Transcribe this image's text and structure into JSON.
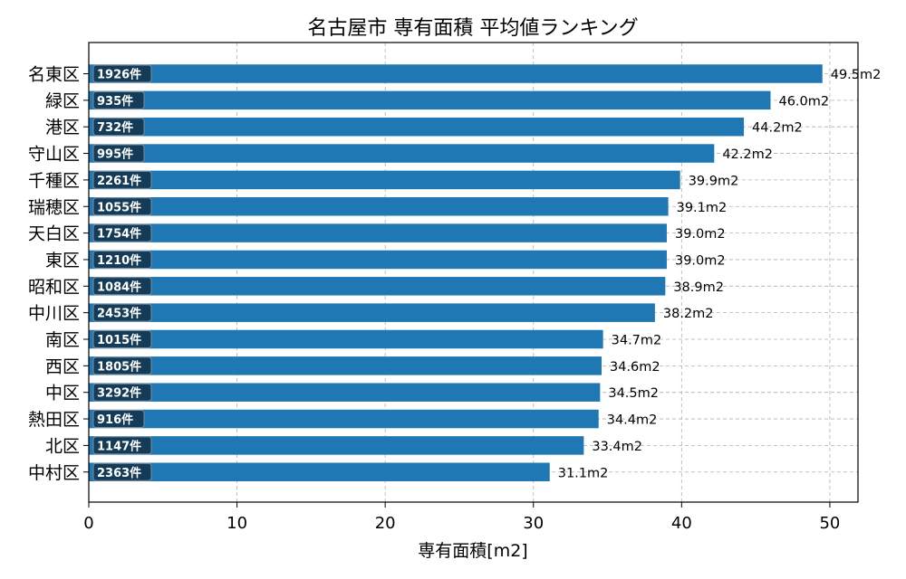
{
  "chart_data": {
    "type": "bar",
    "orientation": "horizontal",
    "title": "名古屋市 専有面積 平均値ランキング",
    "xlabel": "専有面積[m2]",
    "ylabel": "",
    "xlim": [
      0,
      51.9
    ],
    "xticks": [
      0,
      10,
      20,
      30,
      40,
      50
    ],
    "grid": true,
    "categories": [
      "名東区",
      "緑区",
      "港区",
      "守山区",
      "千種区",
      "瑞穂区",
      "天白区",
      "東区",
      "昭和区",
      "中川区",
      "南区",
      "西区",
      "中区",
      "熱田区",
      "北区",
      "中村区"
    ],
    "values": [
      49.5,
      46.0,
      44.2,
      42.2,
      39.9,
      39.1,
      39.0,
      39.0,
      38.9,
      38.2,
      34.7,
      34.6,
      34.5,
      34.4,
      33.4,
      31.1
    ],
    "value_labels": [
      "49.5m2",
      "46.0m2",
      "44.2m2",
      "42.2m2",
      "39.9m2",
      "39.1m2",
      "39.0m2",
      "39.0m2",
      "38.9m2",
      "38.2m2",
      "34.7m2",
      "34.6m2",
      "34.5m2",
      "34.4m2",
      "33.4m2",
      "31.1m2"
    ],
    "counts": [
      "1926件",
      "935件",
      "732件",
      "995件",
      "2261件",
      "1055件",
      "1754件",
      "1210件",
      "1084件",
      "2453件",
      "1015件",
      "1805件",
      "3292件",
      "916件",
      "1147件",
      "2363件"
    ],
    "colors": {
      "bar": "#1f77b4",
      "count_badge": "#143b58",
      "grid": "#b0b0b0"
    }
  }
}
